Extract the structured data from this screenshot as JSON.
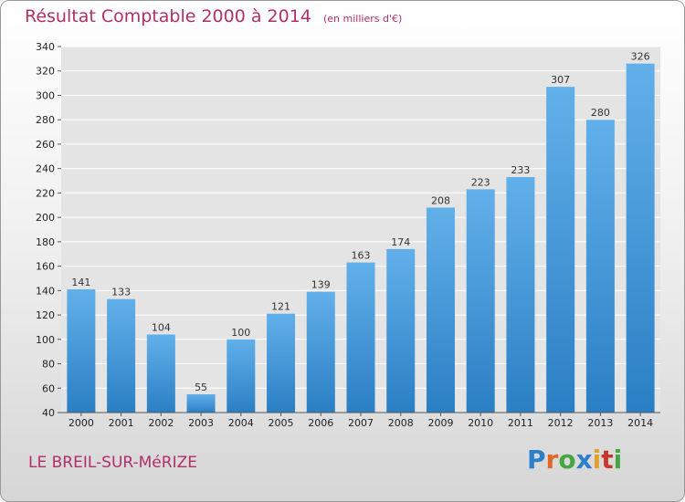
{
  "header": {
    "title": "Résultat Comptable 2000 à 2014",
    "unit": "(en milliers d'€)"
  },
  "footer": {
    "commune": "LE BREIL-SUR-MéRIZE",
    "logo": "Proxiti"
  },
  "colors": {
    "bar_light": "#62b0ea",
    "bar_dark": "#2a7fc4",
    "title": "#b0306a",
    "plot_bg": "#e4e4e4",
    "grid": "#ffffff"
  },
  "chart_data": {
    "type": "bar",
    "categories": [
      "2000",
      "2001",
      "2002",
      "2003",
      "2004",
      "2005",
      "2006",
      "2007",
      "2008",
      "2009",
      "2010",
      "2011",
      "2012",
      "2013",
      "2014"
    ],
    "values": [
      141,
      133,
      104,
      55,
      100,
      121,
      139,
      163,
      174,
      208,
      223,
      233,
      307,
      280,
      326
    ],
    "ylim": [
      40,
      340
    ],
    "yticks": [
      40,
      60,
      80,
      100,
      120,
      140,
      160,
      180,
      200,
      220,
      240,
      260,
      280,
      300,
      320,
      340
    ],
    "grid": true,
    "data_labels": true
  }
}
